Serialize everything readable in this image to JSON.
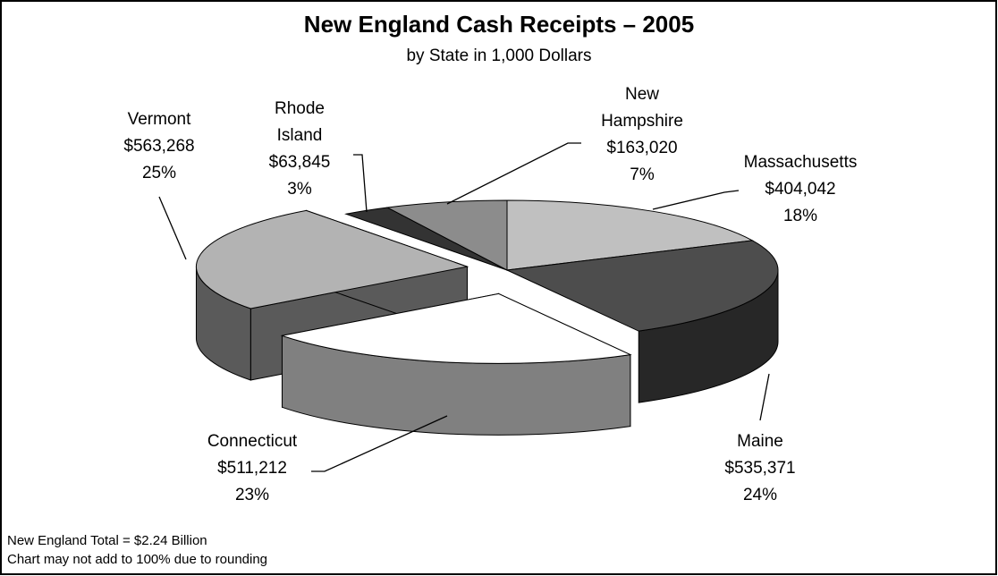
{
  "chart_data": {
    "type": "pie3d",
    "title": "New England Cash Receipts – 2005",
    "subtitle": "by State in 1,000 Dollars",
    "categories": [
      "Massachusetts",
      "Maine",
      "Connecticut",
      "Vermont",
      "Rhode Island",
      "New Hampshire"
    ],
    "values": [
      404042,
      535371,
      511212,
      563268,
      63845,
      163020
    ],
    "value_labels": [
      "$404,042",
      "$535,371",
      "$511,212",
      "$563,268",
      "$63,845",
      "$163,020"
    ],
    "percents": [
      18,
      24,
      23,
      25,
      3,
      7
    ],
    "percent_labels": [
      "18%",
      "24%",
      "23%",
      "25%",
      "3%",
      "7%"
    ],
    "colors": [
      "#c0c0c0",
      "#4d4d4d",
      "#ffffff",
      "#b3b3b3",
      "#333333",
      "#8c8c8c"
    ],
    "notes": [
      "New England Total = $2.24 Billion",
      "Chart may not add to 100% due to rounding"
    ]
  }
}
